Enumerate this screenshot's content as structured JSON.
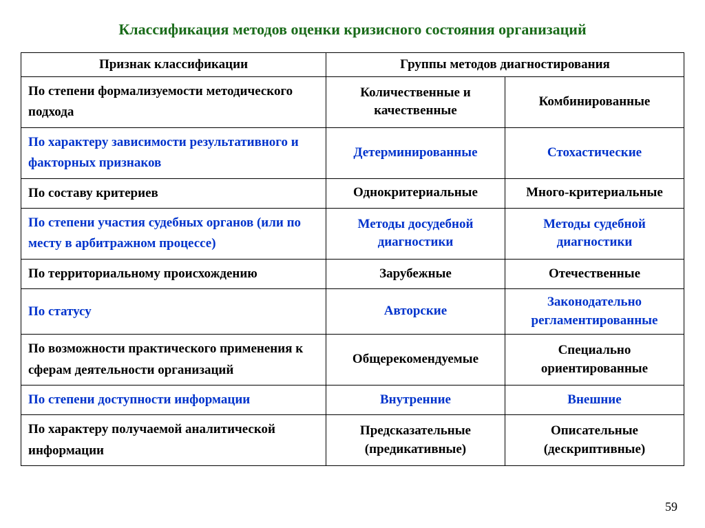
{
  "title": "Классификация методов оценки кризисного состояния организаций",
  "title_color": "#1a6b1a",
  "blue": "#0033cc",
  "black": "#000000",
  "header1": "Признак классификации",
  "header2": "Группы методов диагностирования",
  "rows": [
    {
      "label": "По степени формализуемости методического подхода",
      "c1": "Количественные и качественные",
      "c2": "Комбинированные",
      "color": "black"
    },
    {
      "label": "По характеру зависимости результативного и факторных признаков",
      "c1": "Детерминированные",
      "c2": "Стохастические",
      "color": "blue"
    },
    {
      "label": "По составу критериев",
      "c1": "Однокритериальные",
      "c2": "Много-критериальные",
      "color": "black"
    },
    {
      "label": "По степени участия судебных органов (или по месту в арбитражном процессе)",
      "c1": "Методы досудебной диагностики",
      "c2": "Методы судебной диагностики",
      "color": "blue"
    },
    {
      "label": "По территориальному происхождению",
      "c1": "Зарубежные",
      "c2": "Отечественные",
      "color": "black"
    },
    {
      "label": "По статусу",
      "c1": "Авторские",
      "c2": "Законодательно регламентированные",
      "color": "blue"
    },
    {
      "label": "По возможности практического применения к сферам деятельности организаций",
      "c1": "Общерекомендуемые",
      "c2": "Специально ориентированные",
      "color": "black"
    },
    {
      "label": "По степени доступности информации",
      "c1": "Внутренние",
      "c2": "Внешние",
      "color": "blue"
    },
    {
      "label": "По характеру получаемой аналитической информации",
      "c1": "Предсказательные (предикативные)",
      "c2": "Описательные (дескриптивные)",
      "color": "black"
    }
  ],
  "page_number": "59"
}
